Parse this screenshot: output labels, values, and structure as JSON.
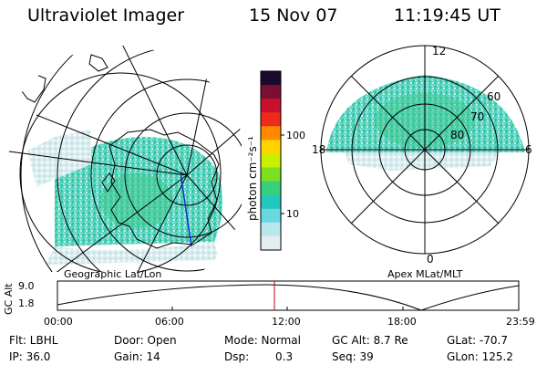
{
  "header": {
    "title": "Ultraviolet Imager",
    "date": "15 Nov 07",
    "time": "11:19:45 UT"
  },
  "colorbar": {
    "unit_label": "photon cm⁻²s⁻¹",
    "ticks": [
      "100",
      "10"
    ],
    "colors": [
      "#1a0a2e",
      "#7a0f33",
      "#c8102e",
      "#ee2a1a",
      "#ff8a00",
      "#ffd400",
      "#c8f000",
      "#7ae020",
      "#38d07a",
      "#20c8c0",
      "#6ad8e0",
      "#b8e8ec",
      "#e4eef0"
    ]
  },
  "geo_map": {
    "caption": "Geographic Lat/Lon"
  },
  "apex_map": {
    "caption": "Apex MLat/MLT",
    "mlt_labels": {
      "top": "12",
      "left": "18",
      "right": "6",
      "bottom": "0"
    },
    "lat_labels": [
      "60",
      "70",
      "80"
    ]
  },
  "timeline": {
    "ylabel": "GC Alt",
    "ymax": "9.0",
    "ymin": "1.8",
    "xticks": [
      "00:00",
      "06:00",
      "12:00",
      "18:00",
      "23:59"
    ],
    "marker_color": "#cc0000"
  },
  "info": {
    "filter": "Flt: LBHL",
    "ip": "IP: 36.0",
    "door": "Door: Open",
    "gain": "Gain: 14",
    "mode": "Mode: Normal",
    "dsp_label": "Dsp:",
    "dsp_value": "0.3",
    "gcalt": "GC Alt: 8.7 Re",
    "seq": "Seq: 39",
    "glat": "GLat: -70.7",
    "glon": "GLon: 125.2"
  }
}
